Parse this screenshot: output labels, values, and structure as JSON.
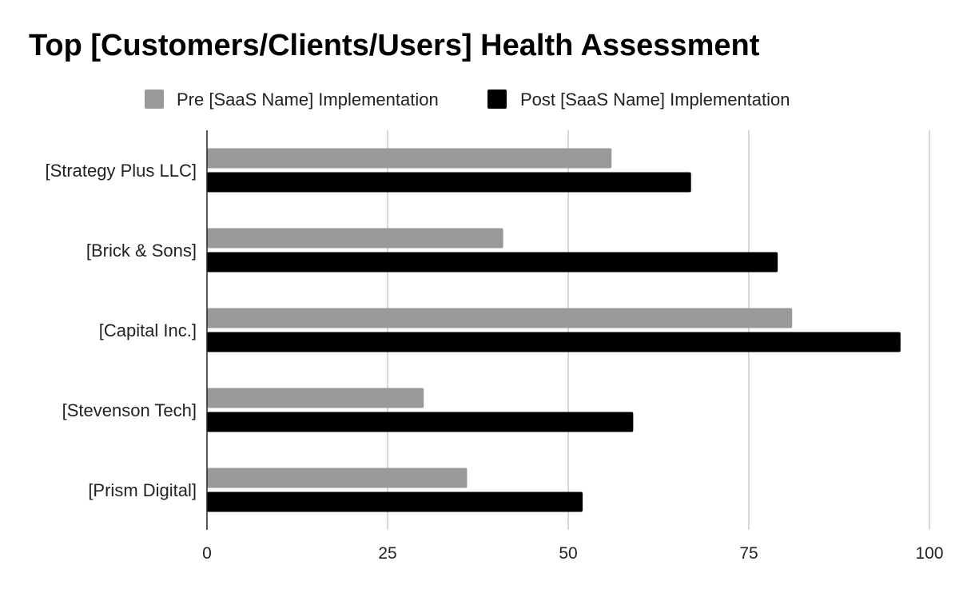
{
  "chart_data": {
    "type": "bar",
    "orientation": "horizontal",
    "title": "Top [Customers/Clients/Users] Health Assessment",
    "xlabel": "",
    "ylabel": "",
    "categories": [
      "[Strategy Plus LLC]",
      "[Brick & Sons]",
      "[Capital Inc.]",
      "[Stevenson Tech]",
      "[Prism Digital]"
    ],
    "series": [
      {
        "name": "Pre [SaaS Name] Implementation",
        "color": "#999999",
        "values": [
          56,
          41,
          81,
          30,
          36
        ]
      },
      {
        "name": "Post [SaaS Name] Implementation",
        "color": "#000000",
        "values": [
          67,
          79,
          96,
          59,
          52
        ]
      }
    ],
    "xlim": [
      0,
      100
    ],
    "xticks": [
      "0",
      "25",
      "50",
      "75",
      "100"
    ],
    "grid": true,
    "legend_position": "top"
  }
}
